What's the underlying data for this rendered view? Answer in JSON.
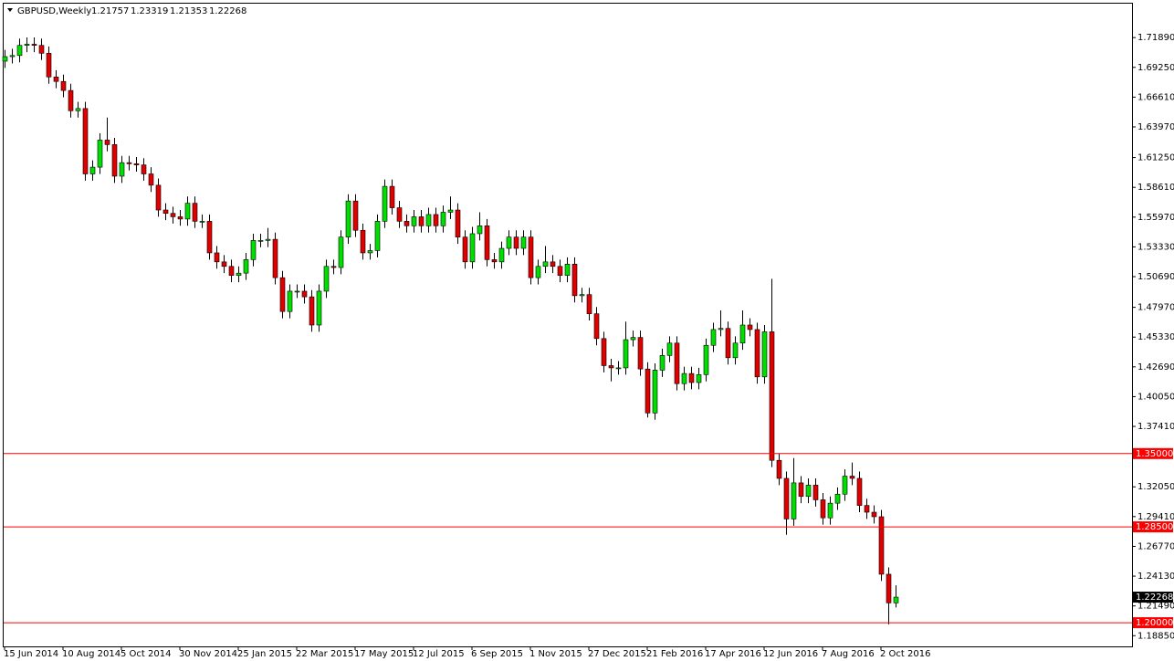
{
  "chart_data": {
    "type": "candlestick",
    "title": "GBPUSD,Weekly",
    "categories": [
      "15 Jun 2014",
      null,
      null,
      null,
      null,
      null,
      null,
      null,
      "10 Aug 2014",
      null,
      null,
      null,
      null,
      null,
      null,
      null,
      "5 Oct 2014",
      null,
      null,
      null,
      null,
      null,
      null,
      null,
      "30 Nov 2014",
      null,
      null,
      null,
      null,
      null,
      null,
      null,
      "25 Jan 2015",
      null,
      null,
      null,
      null,
      null,
      null,
      null,
      "22 Mar 2015",
      null,
      null,
      null,
      null,
      null,
      null,
      null,
      "17 May 2015",
      null,
      null,
      null,
      null,
      null,
      null,
      null,
      "12 Jul 2015",
      null,
      null,
      null,
      null,
      null,
      null,
      null,
      "6 Sep 2015",
      null,
      null,
      null,
      null,
      null,
      null,
      null,
      "1 Nov 2015",
      null,
      null,
      null,
      null,
      null,
      null,
      null,
      "27 Dec 2015",
      null,
      null,
      null,
      null,
      null,
      null,
      null,
      "21 Feb 2016",
      null,
      null,
      null,
      null,
      null,
      null,
      null,
      "17 Apr 2016",
      null,
      null,
      null,
      null,
      null,
      null,
      null,
      "12 Jun 2016",
      null,
      null,
      null,
      null,
      null,
      null,
      null,
      "7 Aug 2016",
      null,
      null,
      null,
      null,
      null,
      null,
      null,
      "2 Oct 2016",
      null,
      null
    ],
    "open": [
      1.698,
      1.702,
      1.703,
      1.712,
      1.713,
      1.712,
      1.705,
      1.684,
      1.68,
      1.672,
      1.654,
      1.656,
      1.598,
      1.604,
      1.628,
      1.624,
      1.596,
      1.608,
      1.607,
      1.606,
      1.598,
      1.588,
      1.566,
      1.563,
      1.56,
      1.558,
      1.572,
      1.556,
      1.556,
      1.528,
      1.52,
      1.516,
      1.508,
      1.51,
      1.522,
      1.539,
      1.539,
      1.54,
      1.506,
      1.476,
      1.494,
      1.494,
      1.489,
      1.464,
      1.494,
      1.516,
      1.515,
      1.542,
      1.574,
      1.548,
      1.528,
      1.53,
      1.556,
      1.587,
      1.568,
      1.556,
      1.552,
      1.56,
      1.552,
      1.562,
      1.552,
      1.564,
      1.566,
      1.542,
      1.52,
      1.545,
      1.552,
      1.522,
      1.52,
      1.532,
      1.542,
      1.532,
      1.542,
      1.506,
      1.516,
      1.52,
      1.516,
      1.508,
      1.518,
      1.49,
      1.491,
      1.474,
      1.452,
      1.428,
      1.426,
      1.426,
      1.451,
      1.453,
      1.425,
      1.386,
      1.424,
      1.437,
      1.448,
      1.412,
      1.421,
      1.413,
      1.42,
      1.446,
      1.46,
      1.461,
      1.435,
      1.448,
      1.464,
      1.46,
      1.418,
      1.458,
      1.344,
      1.328,
      1.292,
      1.324,
      1.312,
      1.322,
      1.309,
      1.293,
      1.306,
      1.314,
      1.33,
      1.328,
      1.304,
      1.298,
      1.294,
      1.243,
      1.21757
    ],
    "high": [
      1.708,
      1.709,
      1.718,
      1.719,
      1.719,
      1.718,
      1.711,
      1.69,
      1.686,
      1.678,
      1.662,
      1.662,
      1.61,
      1.634,
      1.648,
      1.63,
      1.614,
      1.614,
      1.613,
      1.612,
      1.604,
      1.594,
      1.572,
      1.569,
      1.566,
      1.578,
      1.578,
      1.562,
      1.562,
      1.534,
      1.526,
      1.522,
      1.516,
      1.528,
      1.545,
      1.545,
      1.55,
      1.546,
      1.512,
      1.5,
      1.5,
      1.5,
      1.495,
      1.5,
      1.522,
      1.522,
      1.548,
      1.58,
      1.58,
      1.554,
      1.536,
      1.562,
      1.593,
      1.593,
      1.574,
      1.562,
      1.566,
      1.566,
      1.568,
      1.568,
      1.57,
      1.578,
      1.572,
      1.548,
      1.551,
      1.564,
      1.558,
      1.528,
      1.538,
      1.548,
      1.548,
      1.548,
      1.548,
      1.522,
      1.534,
      1.526,
      1.522,
      1.524,
      1.524,
      1.497,
      1.497,
      1.48,
      1.458,
      1.434,
      1.432,
      1.467,
      1.459,
      1.459,
      1.431,
      1.43,
      1.443,
      1.454,
      1.454,
      1.427,
      1.427,
      1.426,
      1.452,
      1.466,
      1.477,
      1.467,
      1.454,
      1.477,
      1.47,
      1.466,
      1.464,
      1.505,
      1.35,
      1.334,
      1.346,
      1.33,
      1.328,
      1.328,
      1.315,
      1.312,
      1.32,
      1.336,
      1.342,
      1.334,
      1.31,
      1.304,
      1.3,
      1.249,
      1.23319
    ],
    "low": [
      1.692,
      1.696,
      1.697,
      1.706,
      1.706,
      1.699,
      1.678,
      1.674,
      1.666,
      1.648,
      1.648,
      1.592,
      1.592,
      1.598,
      1.618,
      1.59,
      1.59,
      1.601,
      1.6,
      1.592,
      1.582,
      1.56,
      1.557,
      1.554,
      1.552,
      1.552,
      1.55,
      1.55,
      1.522,
      1.514,
      1.51,
      1.502,
      1.502,
      1.504,
      1.516,
      1.533,
      1.533,
      1.5,
      1.47,
      1.47,
      1.488,
      1.483,
      1.458,
      1.458,
      1.488,
      1.509,
      1.509,
      1.536,
      1.542,
      1.522,
      1.522,
      1.524,
      1.55,
      1.562,
      1.55,
      1.546,
      1.546,
      1.546,
      1.546,
      1.546,
      1.546,
      1.558,
      1.536,
      1.514,
      1.514,
      1.539,
      1.516,
      1.514,
      1.514,
      1.526,
      1.526,
      1.526,
      1.5,
      1.5,
      1.51,
      1.51,
      1.502,
      1.502,
      1.484,
      1.484,
      1.468,
      1.446,
      1.422,
      1.414,
      1.42,
      1.42,
      1.445,
      1.419,
      1.382,
      1.38,
      1.418,
      1.431,
      1.406,
      1.406,
      1.407,
      1.407,
      1.414,
      1.44,
      1.454,
      1.429,
      1.429,
      1.442,
      1.454,
      1.412,
      1.412,
      1.338,
      1.322,
      1.278,
      1.286,
      1.306,
      1.306,
      1.303,
      1.287,
      1.287,
      1.3,
      1.308,
      1.322,
      1.298,
      1.292,
      1.288,
      1.237,
      1.1985,
      1.21353
    ],
    "close": [
      1.702,
      1.703,
      1.712,
      1.713,
      1.712,
      1.705,
      1.684,
      1.68,
      1.672,
      1.654,
      1.656,
      1.598,
      1.604,
      1.628,
      1.624,
      1.596,
      1.608,
      1.607,
      1.606,
      1.598,
      1.588,
      1.566,
      1.563,
      1.56,
      1.558,
      1.572,
      1.556,
      1.556,
      1.528,
      1.52,
      1.516,
      1.508,
      1.51,
      1.522,
      1.539,
      1.539,
      1.54,
      1.506,
      1.476,
      1.494,
      1.494,
      1.489,
      1.464,
      1.494,
      1.516,
      1.515,
      1.542,
      1.574,
      1.548,
      1.528,
      1.53,
      1.556,
      1.587,
      1.568,
      1.556,
      1.552,
      1.56,
      1.552,
      1.562,
      1.552,
      1.564,
      1.566,
      1.542,
      1.52,
      1.545,
      1.552,
      1.522,
      1.52,
      1.532,
      1.542,
      1.532,
      1.542,
      1.506,
      1.516,
      1.52,
      1.516,
      1.508,
      1.518,
      1.49,
      1.491,
      1.474,
      1.452,
      1.428,
      1.426,
      1.426,
      1.451,
      1.453,
      1.425,
      1.386,
      1.424,
      1.437,
      1.448,
      1.412,
      1.421,
      1.413,
      1.42,
      1.446,
      1.46,
      1.461,
      1.435,
      1.448,
      1.464,
      1.46,
      1.418,
      1.458,
      1.344,
      1.328,
      1.292,
      1.324,
      1.312,
      1.322,
      1.309,
      1.293,
      1.306,
      1.314,
      1.33,
      1.328,
      1.304,
      1.298,
      1.294,
      1.243,
      1.21757,
      1.22268
    ],
    "up_color": "#00e000",
    "down_color": "#e00000",
    "ylim": [
      1.179,
      1.749
    ],
    "yticks": [
      {
        "value": 1.7189,
        "label": "1.71890"
      },
      {
        "value": 1.6925,
        "label": "1.69250"
      },
      {
        "value": 1.6661,
        "label": "1.66610"
      },
      {
        "value": 1.6397,
        "label": "1.63970"
      },
      {
        "value": 1.6125,
        "label": "1.61250"
      },
      {
        "value": 1.5861,
        "label": "1.58610"
      },
      {
        "value": 1.5597,
        "label": "1.55970"
      },
      {
        "value": 1.5333,
        "label": "1.53330"
      },
      {
        "value": 1.5069,
        "label": "1.50690"
      },
      {
        "value": 1.4797,
        "label": "1.47970"
      },
      {
        "value": 1.4533,
        "label": "1.45330"
      },
      {
        "value": 1.4269,
        "label": "1.42690"
      },
      {
        "value": 1.4005,
        "label": "1.40050"
      },
      {
        "value": 1.3741,
        "label": "1.37410"
      },
      {
        "value": 1.3205,
        "label": "1.32050"
      },
      {
        "value": 1.2941,
        "label": "1.29410"
      },
      {
        "value": 1.2677,
        "label": "1.26770"
      },
      {
        "value": 1.2413,
        "label": "1.24130"
      },
      {
        "value": 1.2149,
        "label": "1.21490"
      },
      {
        "value": 1.1885,
        "label": "1.18850"
      }
    ],
    "levels": [
      {
        "value": 1.35,
        "label": "1.35000"
      },
      {
        "value": 1.285,
        "label": "1.28500"
      },
      {
        "value": 1.2,
        "label": "1.20000"
      }
    ],
    "level_color": "#ff0000"
  }
}
